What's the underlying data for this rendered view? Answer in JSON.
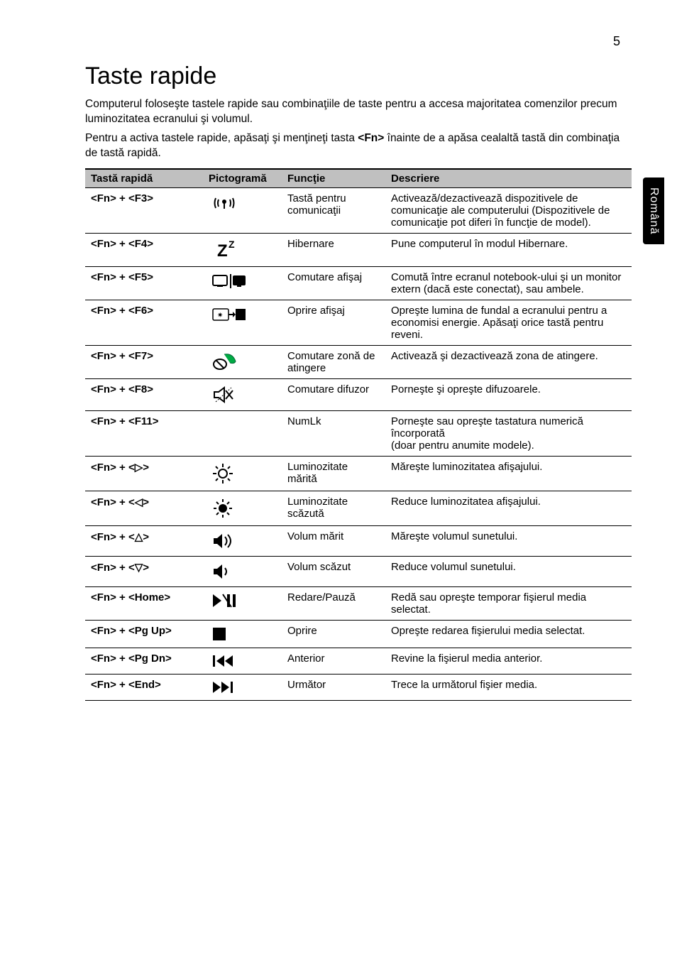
{
  "page_number": "5",
  "side_tab": "Română",
  "title": "Taste rapide",
  "intro1": "Computerul foloseşte tastele rapide sau combinaţiile de taste pentru a accesa majoritatea comenzilor precum luminozitatea ecranului şi volumul.",
  "intro2_pre": "Pentru a activa tastele rapide, apăsaţi şi menţineţi tasta ",
  "intro2_key": "<Fn>",
  "intro2_post": " înainte de a apăsa cealaltă tastă din combinaţia de tastă rapidă.",
  "headers": {
    "key": "Tastă rapidă",
    "icon": "Pictogramă",
    "func": "Funcţie",
    "desc": "Descriere"
  },
  "rows": [
    {
      "key": "<Fn> + <F3>",
      "icon": "wireless",
      "func": "Tastă pentru comunicaţii",
      "desc": "Activează/dezactivează dispozitivele de comunicaţie ale computerului (Dispozitivele de comunicaţie pot diferi în funcţie de model)."
    },
    {
      "key": "<Fn> + <F4>",
      "icon": "sleep",
      "func": "Hibernare",
      "desc": "Pune computerul în modul Hibernare."
    },
    {
      "key": "<Fn> + <F5>",
      "icon": "display",
      "func": "Comutare afişaj",
      "desc": "Comută între ecranul notebook-ului şi un monitor extern (dacă este conectat), sau ambele."
    },
    {
      "key": "<Fn> + <F6>",
      "icon": "displayoff",
      "func": "Oprire afişaj",
      "desc": "Opreşte lumina de fundal a ecranului pentru a economisi energie. Apăsaţi orice tastă pentru reveni."
    },
    {
      "key": "<Fn> + <F7>",
      "icon": "touchpad",
      "func": "Comutare zonă de atingere",
      "desc": "Activează şi dezactivează zona de atingere."
    },
    {
      "key": "<Fn> + <F8>",
      "icon": "mute",
      "func": "Comutare difuzor",
      "desc": "Porneşte şi opreşte difuzoarele."
    },
    {
      "key": "<Fn> + <F11>",
      "icon": "",
      "func": "NumLk",
      "desc": "Porneşte sau opreşte tastatura numerică încorporată\n(doar pentru anumite modele)."
    },
    {
      "key": "<Fn> + <▷>",
      "icon": "brightup",
      "func": "Luminozitate mărită",
      "desc": "Măreşte luminozitatea afişajului."
    },
    {
      "key": "<Fn> + <◁>",
      "icon": "brightdown",
      "func": "Luminozitate scăzută",
      "desc": "Reduce luminozitatea afişajului."
    },
    {
      "key": "<Fn> + <△>",
      "icon": "volup",
      "func": "Volum mărit",
      "desc": "Măreşte volumul sunetului."
    },
    {
      "key": "<Fn> + <▽>",
      "icon": "voldown",
      "func": "Volum scăzut",
      "desc": "Reduce volumul sunetului."
    },
    {
      "key": "<Fn> + <Home>",
      "icon": "playpause",
      "func": "Redare/Pauză",
      "desc": "Redă sau opreşte temporar fişierul media selectat."
    },
    {
      "key": "<Fn> + <Pg Up>",
      "icon": "stop",
      "func": "Oprire",
      "desc": "Opreşte redarea fişierului media selectat."
    },
    {
      "key": "<Fn> + <Pg Dn>",
      "icon": "prev",
      "func": "Anterior",
      "desc": "Revine la fişierul media anterior."
    },
    {
      "key": "<Fn> + <End>",
      "icon": "next",
      "func": "Următor",
      "desc": "Trece la următorul fişier media."
    }
  ],
  "colors": {
    "header_bg": "#c0c0c0",
    "border": "#000000",
    "text": "#000000",
    "tab_bg": "#000000",
    "tab_fg": "#ffffff"
  },
  "fonts": {
    "title_size_pt": 26,
    "body_size_pt": 12,
    "table_size_pt": 11
  }
}
